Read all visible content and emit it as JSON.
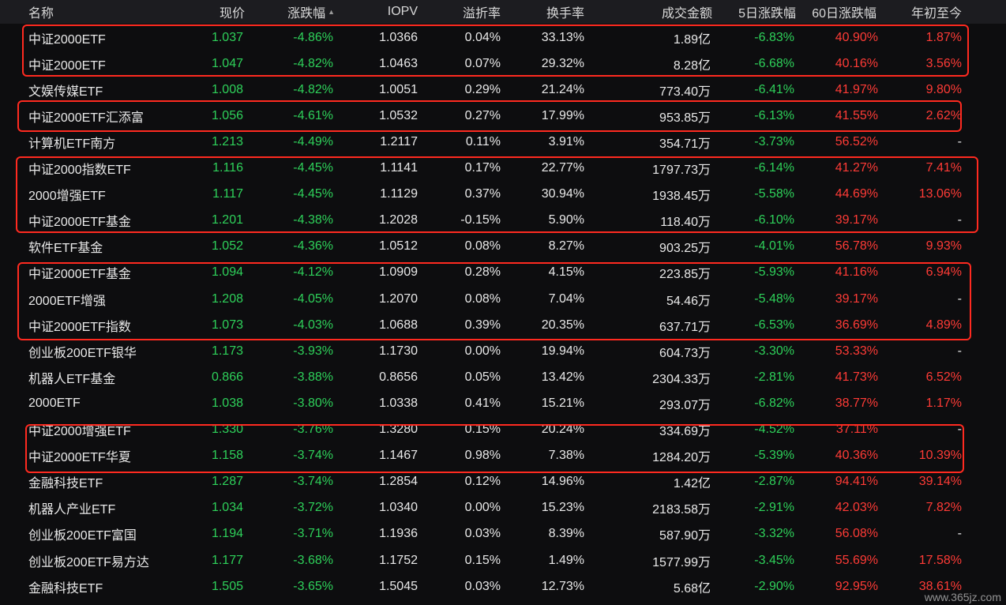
{
  "colors": {
    "up": "#ff3b36",
    "down": "#2ed15a",
    "neutral": "#e9e9e9",
    "highlight": "#ff2a20",
    "background": "#0d0d0f",
    "header_bg": "#1c1c20"
  },
  "header": {
    "name": "名称",
    "price": "现价",
    "change": "涨跌幅",
    "change_sort_icon": "sort-ascending-icon",
    "iopv": "IOPV",
    "premium": "溢折率",
    "turnover": "换手率",
    "amount": "成交金额",
    "d5": "5日涨跌幅",
    "d60": "60日涨跌幅",
    "ytd": "年初至今"
  },
  "rows": [
    {
      "name": "中证2000ETF",
      "price": "1.037",
      "change": "-4.86%",
      "iopv": "1.0366",
      "premium": "0.04%",
      "turnover": "33.13%",
      "amount": "1.89亿",
      "d5": "-6.83%",
      "d60": "40.90%",
      "ytd": "1.87%"
    },
    {
      "name": "中证2000ETF",
      "price": "1.047",
      "change": "-4.82%",
      "iopv": "1.0463",
      "premium": "0.07%",
      "turnover": "29.32%",
      "amount": "8.28亿",
      "d5": "-6.68%",
      "d60": "40.16%",
      "ytd": "3.56%"
    },
    {
      "name": "文娱传媒ETF",
      "price": "1.008",
      "change": "-4.82%",
      "iopv": "1.0051",
      "premium": "0.29%",
      "turnover": "21.24%",
      "amount": "773.40万",
      "d5": "-6.41%",
      "d60": "41.97%",
      "ytd": "9.80%"
    },
    {
      "name": "中证2000ETF汇添富",
      "price": "1.056",
      "change": "-4.61%",
      "iopv": "1.0532",
      "premium": "0.27%",
      "turnover": "17.99%",
      "amount": "953.85万",
      "d5": "-6.13%",
      "d60": "41.55%",
      "ytd": "2.62%"
    },
    {
      "name": "计算机ETF南方",
      "price": "1.213",
      "change": "-4.49%",
      "iopv": "1.2117",
      "premium": "0.11%",
      "turnover": "3.91%",
      "amount": "354.71万",
      "d5": "-3.73%",
      "d60": "56.52%",
      "ytd": "-"
    },
    {
      "name": "中证2000指数ETF",
      "price": "1.116",
      "change": "-4.45%",
      "iopv": "1.1141",
      "premium": "0.17%",
      "turnover": "22.77%",
      "amount": "1797.73万",
      "d5": "-6.14%",
      "d60": "41.27%",
      "ytd": "7.41%"
    },
    {
      "name": "2000增强ETF",
      "price": "1.117",
      "change": "-4.45%",
      "iopv": "1.1129",
      "premium": "0.37%",
      "turnover": "30.94%",
      "amount": "1938.45万",
      "d5": "-5.58%",
      "d60": "44.69%",
      "ytd": "13.06%"
    },
    {
      "name": "中证2000ETF基金",
      "price": "1.201",
      "change": "-4.38%",
      "iopv": "1.2028",
      "premium": "-0.15%",
      "turnover": "5.90%",
      "amount": "118.40万",
      "d5": "-6.10%",
      "d60": "39.17%",
      "ytd": "-"
    },
    {
      "name": "软件ETF基金",
      "price": "1.052",
      "change": "-4.36%",
      "iopv": "1.0512",
      "premium": "0.08%",
      "turnover": "8.27%",
      "amount": "903.25万",
      "d5": "-4.01%",
      "d60": "56.78%",
      "ytd": "9.93%"
    },
    {
      "name": "中证2000ETF基金",
      "price": "1.094",
      "change": "-4.12%",
      "iopv": "1.0909",
      "premium": "0.28%",
      "turnover": "4.15%",
      "amount": "223.85万",
      "d5": "-5.93%",
      "d60": "41.16%",
      "ytd": "6.94%"
    },
    {
      "name": "2000ETF增强",
      "price": "1.208",
      "change": "-4.05%",
      "iopv": "1.2070",
      "premium": "0.08%",
      "turnover": "7.04%",
      "amount": "54.46万",
      "d5": "-5.48%",
      "d60": "39.17%",
      "ytd": "-"
    },
    {
      "name": "中证2000ETF指数",
      "price": "1.073",
      "change": "-4.03%",
      "iopv": "1.0688",
      "premium": "0.39%",
      "turnover": "20.35%",
      "amount": "637.71万",
      "d5": "-6.53%",
      "d60": "36.69%",
      "ytd": "4.89%"
    },
    {
      "name": "创业板200ETF银华",
      "price": "1.173",
      "change": "-3.93%",
      "iopv": "1.1730",
      "premium": "0.00%",
      "turnover": "19.94%",
      "amount": "604.73万",
      "d5": "-3.30%",
      "d60": "53.33%",
      "ytd": "-"
    },
    {
      "name": "机器人ETF基金",
      "price": "0.866",
      "change": "-3.88%",
      "iopv": "0.8656",
      "premium": "0.05%",
      "turnover": "13.42%",
      "amount": "2304.33万",
      "d5": "-2.81%",
      "d60": "41.73%",
      "ytd": "6.52%"
    },
    {
      "name": "2000ETF",
      "price": "1.038",
      "change": "-3.80%",
      "iopv": "1.0338",
      "premium": "0.41%",
      "turnover": "15.21%",
      "amount": "293.07万",
      "d5": "-6.82%",
      "d60": "38.77%",
      "ytd": "1.17%"
    },
    {
      "name": "中证2000增强ETF",
      "price": "1.330",
      "change": "-3.76%",
      "iopv": "1.3280",
      "premium": "0.15%",
      "turnover": "20.24%",
      "amount": "334.69万",
      "d5": "-4.52%",
      "d60": "37.11%",
      "ytd": "-"
    },
    {
      "name": "中证2000ETF华夏",
      "price": "1.158",
      "change": "-3.74%",
      "iopv": "1.1467",
      "premium": "0.98%",
      "turnover": "7.38%",
      "amount": "1284.20万",
      "d5": "-5.39%",
      "d60": "40.36%",
      "ytd": "10.39%"
    },
    {
      "name": "金融科技ETF",
      "price": "1.287",
      "change": "-3.74%",
      "iopv": "1.2854",
      "premium": "0.12%",
      "turnover": "14.96%",
      "amount": "1.42亿",
      "d5": "-2.87%",
      "d60": "94.41%",
      "ytd": "39.14%"
    },
    {
      "name": "机器人产业ETF",
      "price": "1.034",
      "change": "-3.72%",
      "iopv": "1.0340",
      "premium": "0.00%",
      "turnover": "15.23%",
      "amount": "2183.58万",
      "d5": "-2.91%",
      "d60": "42.03%",
      "ytd": "7.82%"
    },
    {
      "name": "创业板200ETF富国",
      "price": "1.194",
      "change": "-3.71%",
      "iopv": "1.1936",
      "premium": "0.03%",
      "turnover": "8.39%",
      "amount": "587.90万",
      "d5": "-3.32%",
      "d60": "56.08%",
      "ytd": "-"
    },
    {
      "name": "创业板200ETF易方达",
      "price": "1.177",
      "change": "-3.68%",
      "iopv": "1.1752",
      "premium": "0.15%",
      "turnover": "1.49%",
      "amount": "1577.99万",
      "d5": "-3.45%",
      "d60": "55.69%",
      "ytd": "17.58%"
    },
    {
      "name": "金融科技ETF",
      "price": "1.505",
      "change": "-3.65%",
      "iopv": "1.5045",
      "premium": "0.03%",
      "turnover": "12.73%",
      "amount": "5.68亿",
      "d5": "-2.90%",
      "d60": "92.95%",
      "ytd": "38.61%"
    }
  ],
  "watermark": "www.365jz.com"
}
